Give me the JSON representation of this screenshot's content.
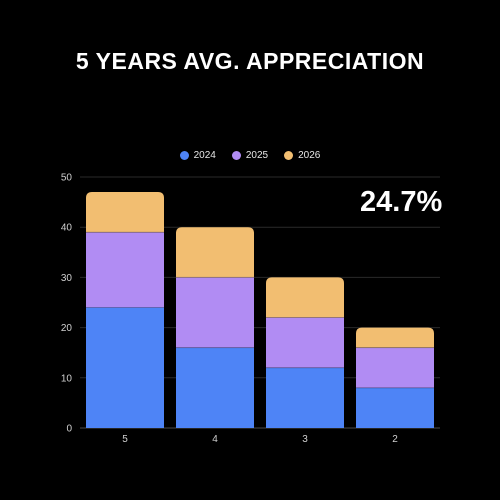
{
  "title": "5 YEARS AVG. APPRECIATION",
  "highlight_value": "24.7%",
  "colors": {
    "background": "#000000",
    "gridline": "#2a2a2a",
    "series_2024": "#4e84f6",
    "series_2025": "#b18cf3",
    "series_2026": "#f2be71"
  },
  "chart_data": {
    "type": "bar",
    "stacked": true,
    "title": "5 YEARS AVG. APPRECIATION",
    "categories": [
      "5",
      "4",
      "3",
      "2"
    ],
    "series": [
      {
        "name": "2024",
        "values": [
          24,
          16,
          12,
          8
        ],
        "color": "#4e84f6"
      },
      {
        "name": "2025",
        "values": [
          15,
          14,
          10,
          8
        ],
        "color": "#b18cf3"
      },
      {
        "name": "2026",
        "values": [
          8,
          10,
          8,
          4
        ],
        "color": "#f2be71"
      }
    ],
    "ylim": [
      0,
      50
    ],
    "yticks": [
      "0",
      "10",
      "20",
      "30",
      "40",
      "50"
    ],
    "grid": true,
    "legend_position": "top"
  }
}
